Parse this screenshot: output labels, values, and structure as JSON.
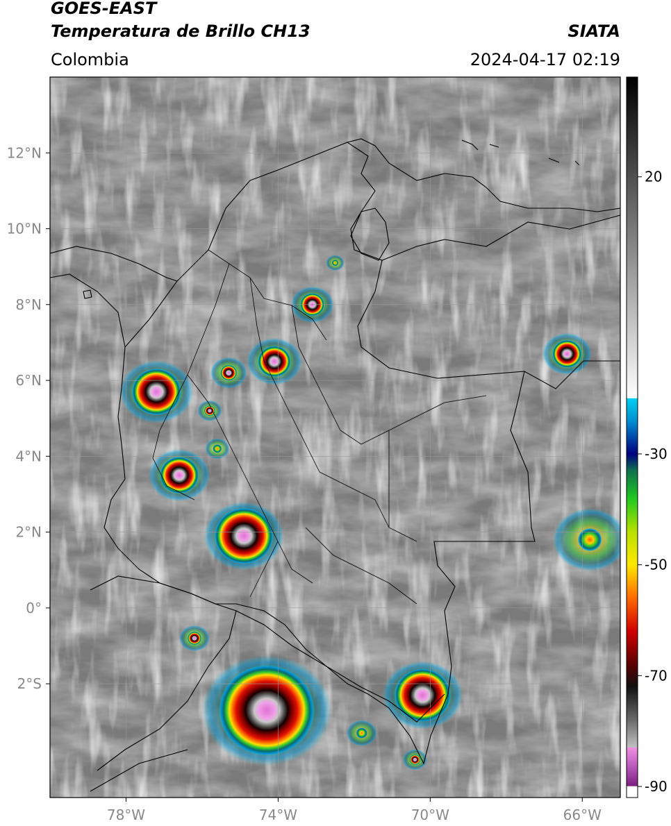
{
  "header": {
    "satellite": "GOES-EAST",
    "product": "Temperatura de Brillo CH13",
    "organization": "SIATA",
    "region": "Colombia",
    "timestamp": "2024-04-17 02:19"
  },
  "map": {
    "lon_range": [
      -80,
      -65
    ],
    "lat_range": [
      -5,
      14
    ],
    "lat_ticks": [
      {
        "value": 12,
        "label": "12°N"
      },
      {
        "value": 10,
        "label": "10°N"
      },
      {
        "value": 8,
        "label": "8°N"
      },
      {
        "value": 6,
        "label": "6°N"
      },
      {
        "value": 4,
        "label": "4°N"
      },
      {
        "value": 2,
        "label": "2°N"
      },
      {
        "value": 0,
        "label": "0°"
      },
      {
        "value": -2,
        "label": "2°S"
      }
    ],
    "lon_ticks": [
      {
        "value": -78,
        "label": "78°W"
      },
      {
        "value": -74,
        "label": "74°W"
      },
      {
        "value": -70,
        "label": "70°W"
      },
      {
        "value": -66,
        "label": "66°W"
      }
    ],
    "storm_cells": [
      {
        "lon": -77.2,
        "lat": 5.7,
        "size": 1.2,
        "intensity": 0.9
      },
      {
        "lon": -76.6,
        "lat": 3.5,
        "size": 1.0,
        "intensity": 0.85
      },
      {
        "lon": -74.9,
        "lat": 1.9,
        "size": 1.3,
        "intensity": 1.0
      },
      {
        "lon": -74.1,
        "lat": 6.5,
        "size": 0.9,
        "intensity": 0.8
      },
      {
        "lon": -75.3,
        "lat": 6.2,
        "size": 0.6,
        "intensity": 0.6
      },
      {
        "lon": -73.1,
        "lat": 8.0,
        "size": 0.7,
        "intensity": 0.75
      },
      {
        "lon": -72.5,
        "lat": 9.1,
        "size": 0.3,
        "intensity": 0.5
      },
      {
        "lon": -74.3,
        "lat": -2.7,
        "size": 2.1,
        "intensity": 1.0
      },
      {
        "lon": -76.2,
        "lat": -0.8,
        "size": 0.5,
        "intensity": 0.6
      },
      {
        "lon": -70.2,
        "lat": -2.3,
        "size": 1.3,
        "intensity": 0.95
      },
      {
        "lon": -71.8,
        "lat": -3.3,
        "size": 0.5,
        "intensity": 0.5
      },
      {
        "lon": -70.4,
        "lat": -4.0,
        "size": 0.4,
        "intensity": 0.6
      },
      {
        "lon": -66.4,
        "lat": 6.7,
        "size": 0.8,
        "intensity": 0.8
      },
      {
        "lon": -75.8,
        "lat": 5.2,
        "size": 0.4,
        "intensity": 0.6
      },
      {
        "lon": -75.6,
        "lat": 4.2,
        "size": 0.4,
        "intensity": 0.5
      },
      {
        "lon": -65.8,
        "lat": 1.8,
        "size": 1.2,
        "intensity": 0.45
      }
    ]
  },
  "colorbar": {
    "range": [
      -92,
      38
    ],
    "ticks": [
      {
        "value": 20,
        "label": "20"
      },
      {
        "value": -30,
        "label": "-30"
      },
      {
        "value": -50,
        "label": "-50"
      },
      {
        "value": -70,
        "label": "-70"
      },
      {
        "value": -90,
        "label": "-90"
      }
    ],
    "stops": [
      {
        "value": -92,
        "color": "#ffffff"
      },
      {
        "value": -90,
        "color": "#ffffff"
      },
      {
        "value": -89.9,
        "color": "#7b1f7e"
      },
      {
        "value": -86,
        "color": "#c060c0"
      },
      {
        "value": -83,
        "color": "#f090e0"
      },
      {
        "value": -82.9,
        "color": "#c0c0c0"
      },
      {
        "value": -78,
        "color": "#6a6a6a"
      },
      {
        "value": -72,
        "color": "#111111"
      },
      {
        "value": -68,
        "color": "#5a0000"
      },
      {
        "value": -62,
        "color": "#d00000"
      },
      {
        "value": -56,
        "color": "#ff6a00"
      },
      {
        "value": -50,
        "color": "#ffe800"
      },
      {
        "value": -44,
        "color": "#b8e000"
      },
      {
        "value": -38,
        "color": "#1fc81f"
      },
      {
        "value": -33,
        "color": "#107050"
      },
      {
        "value": -30,
        "color": "#000080"
      },
      {
        "value": -24,
        "color": "#0090d0"
      },
      {
        "value": -20,
        "color": "#00d0f0"
      },
      {
        "value": -19.9,
        "color": "#ffffff"
      },
      {
        "value": 38,
        "color": "#000000"
      }
    ]
  }
}
